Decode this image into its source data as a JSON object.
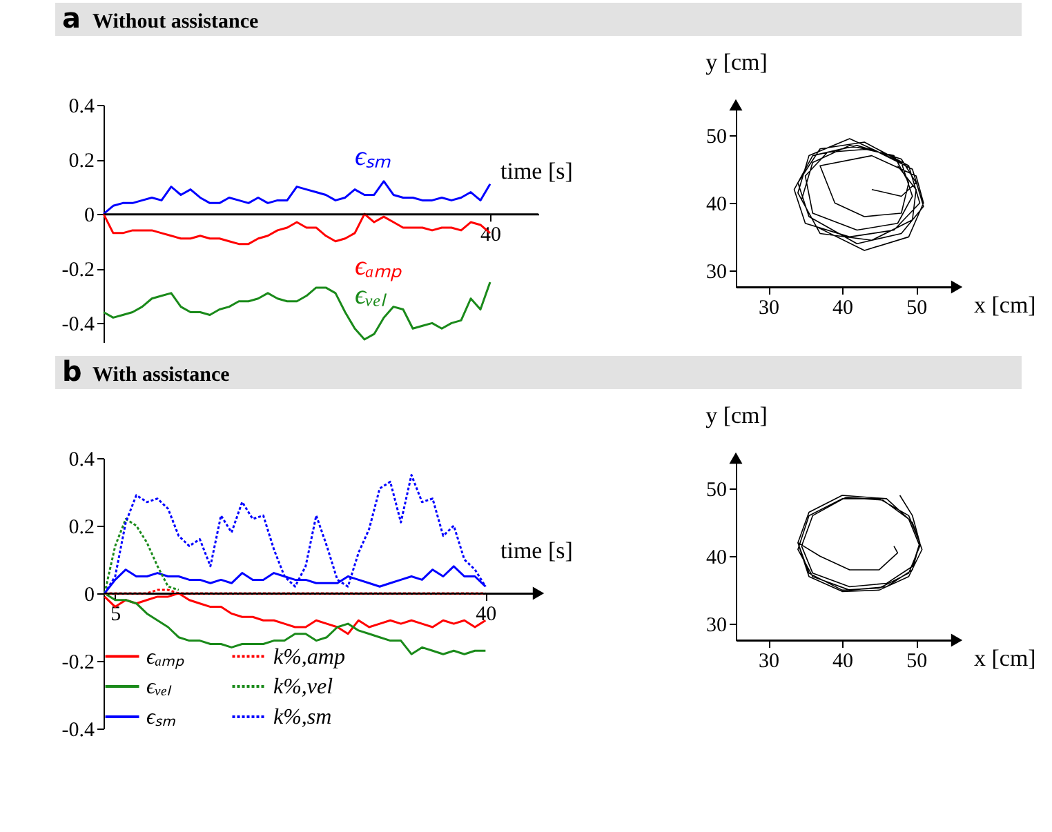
{
  "chart_data": [
    {
      "type": "line",
      "title": "Without assistance",
      "annotations": [
        "a"
      ],
      "categories": [
        null,
        null,
        null,
        null,
        null,
        null,
        null,
        null,
        null,
        null,
        null,
        null,
        null,
        null,
        null,
        null,
        null,
        null,
        null,
        null,
        null,
        null,
        null,
        null,
        null,
        null,
        null,
        null,
        null,
        null,
        null,
        null,
        null,
        null,
        null,
        null,
        null,
        null,
        null,
        null,
        "40"
      ],
      "ylim": [
        -0.47,
        0.4
      ],
      "yticks": [
        -0.4,
        -0.2,
        0,
        0.2,
        0.4
      ],
      "xlabel": "time [s]",
      "legend": false,
      "series": [
        {
          "name": "ϵₛₘ",
          "color": "#0000ff",
          "values": [
            0,
            0.03,
            0.04,
            0.04,
            0.05,
            0.06,
            0.05,
            0.1,
            0.07,
            0.09,
            0.06,
            0.04,
            0.04,
            0.06,
            0.05,
            0.04,
            0.06,
            0.04,
            0.05,
            0.05,
            0.1,
            0.09,
            0.08,
            0.07,
            0.05,
            0.06,
            0.09,
            0.07,
            0.07,
            0.12,
            0.07,
            0.06,
            0.06,
            0.05,
            0.05,
            0.06,
            0.05,
            0.06,
            0.08,
            0.05,
            0.11
          ]
        },
        {
          "name": "ϵₐₘₚ",
          "color": "#ff0000",
          "values": [
            0,
            -0.07,
            -0.07,
            -0.06,
            -0.06,
            -0.06,
            -0.07,
            -0.08,
            -0.09,
            -0.09,
            -0.08,
            -0.09,
            -0.09,
            -0.1,
            -0.11,
            -0.11,
            -0.09,
            -0.08,
            -0.06,
            -0.05,
            -0.03,
            -0.05,
            -0.05,
            -0.08,
            -0.1,
            -0.09,
            -0.07,
            0,
            -0.03,
            -0.01,
            -0.03,
            -0.05,
            -0.05,
            -0.05,
            -0.06,
            -0.05,
            -0.05,
            -0.06,
            -0.03,
            -0.04,
            -0.07
          ]
        },
        {
          "name": "ϵᵥₑₗ",
          "color": "#1a8a1a",
          "values": [
            -0.36,
            -0.38,
            -0.37,
            -0.36,
            -0.34,
            -0.31,
            -0.3,
            -0.29,
            -0.34,
            -0.36,
            -0.36,
            -0.37,
            -0.35,
            -0.34,
            -0.32,
            -0.32,
            -0.31,
            -0.29,
            -0.31,
            -0.32,
            -0.32,
            -0.3,
            -0.27,
            -0.27,
            -0.29,
            -0.36,
            -0.42,
            -0.46,
            -0.44,
            -0.38,
            -0.34,
            -0.35,
            -0.42,
            -0.41,
            -0.4,
            -0.42,
            -0.4,
            -0.39,
            -0.31,
            -0.35,
            -0.25
          ]
        }
      ]
    },
    {
      "type": "line",
      "xlim": [
        25.6,
        55.5
      ],
      "ylim": [
        27.6,
        54.5
      ],
      "xticks": [
        30,
        40,
        50
      ],
      "yticks": [
        30,
        40,
        50
      ],
      "xlabel": "x [cm]",
      "ylabel": "y [cm]",
      "series": [
        {
          "color": "#000000",
          "x": [
            44,
            48,
            50,
            48,
            42,
            36,
            33.5,
            35,
            41,
            47,
            50.5,
            49,
            43,
            37,
            34,
            35.5,
            42,
            48,
            51,
            49.5,
            44,
            38,
            35,
            36,
            42,
            47.5,
            49.5,
            48,
            41,
            35.5,
            34,
            36.5,
            43,
            49,
            51,
            50,
            44,
            37,
            39,
            43,
            48,
            49,
            47,
            41,
            36,
            34.5,
            37,
            44,
            49.5,
            50,
            47.5
          ],
          "values": [
            42,
            41,
            43,
            46.5,
            48.5,
            47,
            42,
            37,
            35,
            36,
            40,
            45.5,
            49,
            48,
            43,
            38,
            34,
            35.5,
            39.5,
            45,
            48,
            47.5,
            44,
            38.5,
            36,
            37,
            41,
            46,
            49.5,
            47,
            41.5,
            36.5,
            33,
            35,
            40,
            44,
            47,
            45.5,
            40,
            38,
            38.5,
            43,
            47,
            48.5,
            46,
            40.5,
            35.5,
            34.5,
            37.5,
            42,
            45.5
          ]
        }
      ]
    },
    {
      "type": "line",
      "title": "With assistance",
      "annotations": [
        "b"
      ],
      "x": [
        4,
        5,
        6,
        7,
        8,
        9,
        10,
        11,
        12,
        13,
        14,
        15,
        16,
        17,
        18,
        19,
        20,
        21,
        22,
        23,
        24,
        25,
        26,
        27,
        28,
        29,
        30,
        31,
        32,
        33,
        34,
        35,
        36,
        37,
        38,
        39,
        40
      ],
      "xlim": [
        3.9,
        45
      ],
      "ylim": [
        -0.4,
        0.4
      ],
      "xticks": [
        5,
        40
      ],
      "yticks": [
        -0.4,
        -0.2,
        0,
        0.2,
        0.4
      ],
      "xlabel": "time [s]",
      "legend": "bottom left",
      "series": [
        {
          "name": "ϵₐₘₚ",
          "color": "#ff0000",
          "values": [
            -0.01,
            -0.04,
            -0.02,
            -0.03,
            -0.02,
            -0.01,
            -0.01,
            0,
            -0.02,
            -0.03,
            -0.04,
            -0.04,
            -0.06,
            -0.07,
            -0.07,
            -0.08,
            -0.08,
            -0.09,
            -0.1,
            -0.1,
            -0.08,
            -0.09,
            -0.1,
            -0.12,
            -0.08,
            -0.1,
            -0.09,
            -0.08,
            -0.09,
            -0.08,
            -0.09,
            -0.1,
            -0.08,
            -0.09,
            -0.08,
            -0.1,
            -0.08
          ]
        },
        {
          "name": "ϵᵥₑₗ",
          "color": "#1a8a1a",
          "values": [
            0,
            -0.02,
            -0.02,
            -0.03,
            -0.06,
            -0.08,
            -0.1,
            -0.13,
            -0.14,
            -0.14,
            -0.15,
            -0.15,
            -0.16,
            -0.15,
            -0.15,
            -0.15,
            -0.14,
            -0.14,
            -0.12,
            -0.12,
            -0.14,
            -0.13,
            -0.1,
            -0.09,
            -0.11,
            -0.12,
            -0.13,
            -0.14,
            -0.14,
            -0.18,
            -0.16,
            -0.17,
            -0.18,
            -0.17,
            -0.18,
            -0.17,
            -0.17
          ]
        },
        {
          "name": "ϵₛₘ",
          "color": "#0000ff",
          "values": [
            0,
            0.04,
            0.07,
            0.05,
            0.05,
            0.06,
            0.05,
            0.05,
            0.04,
            0.04,
            0.03,
            0.04,
            0.03,
            0.06,
            0.04,
            0.04,
            0.06,
            0.05,
            0.04,
            0.04,
            0.03,
            0.03,
            0.03,
            0.05,
            0.04,
            0.03,
            0.02,
            0.03,
            0.04,
            0.05,
            0.04,
            0.07,
            0.05,
            0.08,
            0.05,
            0.05,
            0.02
          ]
        },
        {
          "name": "k%,amp",
          "color": "#ff0000",
          "line_style": "dotted",
          "values": [
            0,
            0,
            0,
            0,
            0,
            0.01,
            0.01,
            0,
            0,
            0,
            0,
            0,
            0,
            0,
            0,
            0,
            0,
            0,
            0,
            0,
            0,
            0,
            0,
            0,
            0,
            0,
            0,
            0,
            0,
            0,
            0,
            0,
            0,
            0,
            0,
            0,
            0
          ]
        },
        {
          "name": "k%,vel",
          "color": "#1a8a1a",
          "line_style": "dotted",
          "values": [
            0,
            0.14,
            0.22,
            0.2,
            0.15,
            0.08,
            0.02,
            0.01,
            null,
            null,
            null,
            null,
            null,
            null,
            null,
            null,
            null,
            null,
            null,
            null,
            null,
            null,
            null,
            null,
            null,
            null,
            null,
            null,
            null,
            null,
            null,
            null,
            null,
            null,
            null,
            null,
            null
          ]
        },
        {
          "name": "k%,sm",
          "color": "#0000ff",
          "line_style": "dotted",
          "values": [
            0,
            0.05,
            0.21,
            0.29,
            0.27,
            0.28,
            0.25,
            0.17,
            0.14,
            0.16,
            0.08,
            0.23,
            0.18,
            0.27,
            0.22,
            0.23,
            0.13,
            0.05,
            0.02,
            0.08,
            0.23,
            0.14,
            0.04,
            0.02,
            0.12,
            0.19,
            0.31,
            0.33,
            0.21,
            0.35,
            0.27,
            0.28,
            0.17,
            0.2,
            0.1,
            0.07,
            0.02
          ]
        }
      ]
    },
    {
      "type": "line",
      "xlim": [
        25.6,
        55.5
      ],
      "ylim": [
        27.6,
        54.5
      ],
      "xticks": [
        30,
        40,
        50
      ],
      "yticks": [
        30,
        40,
        50
      ],
      "xlabel": "x [cm]",
      "ylabel": "y [cm]",
      "series": [
        {
          "color": "#000000",
          "x": [
            47.8,
            49.5,
            50.5,
            49.5,
            46,
            41,
            36,
            34,
            35.5,
            40,
            45,
            49,
            50.5,
            49.5,
            46,
            41,
            36,
            34.5,
            36,
            40.5,
            45.5,
            49,
            50.5,
            49,
            45,
            40,
            35.5,
            34,
            35.5,
            40,
            46,
            49.5,
            50.8,
            49,
            45,
            40,
            35.5,
            34,
            37,
            41,
            45,
            47.5,
            47
          ],
          "values": [
            49,
            46,
            42,
            38,
            35.5,
            35,
            37,
            41,
            46,
            48.5,
            48.5,
            46,
            42,
            38.5,
            36,
            35.5,
            37.5,
            41.5,
            46,
            48.7,
            48.3,
            45.5,
            41.5,
            37.5,
            35.3,
            35,
            37.5,
            42,
            46.5,
            49,
            48.5,
            45,
            41,
            37,
            35,
            34.8,
            37,
            42,
            40,
            38,
            38,
            40.5,
            41.5
          ]
        }
      ]
    }
  ]
}
